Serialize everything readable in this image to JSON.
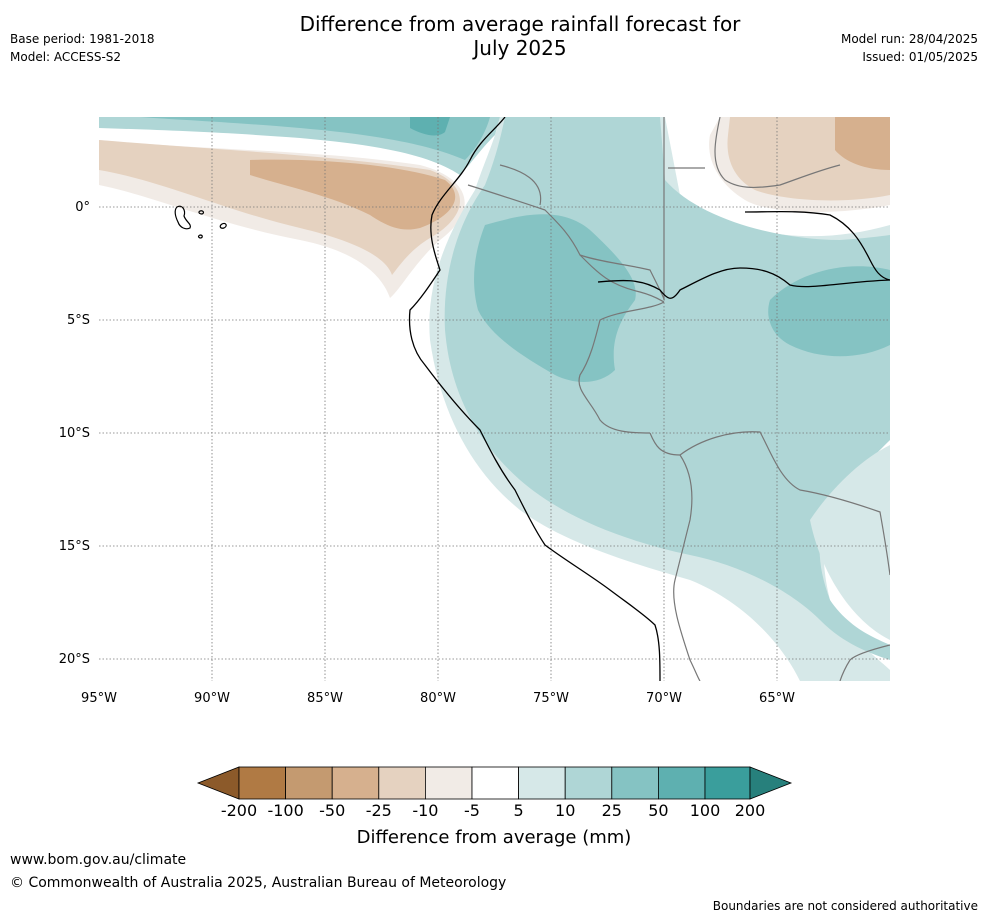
{
  "header": {
    "title_line1": "Difference from average rainfall forecast for",
    "title_line2": "July 2025",
    "base_period": "Base period: 1981-2018",
    "model": "Model: ACCESS-S2",
    "model_run": "Model run: 28/04/2025",
    "issued": "Issued: 01/05/2025"
  },
  "map": {
    "lon_labels": [
      "95°W",
      "90°W",
      "85°W",
      "80°W",
      "75°W",
      "70°W",
      "65°W"
    ],
    "lat_labels": [
      "0°",
      "5°S",
      "10°S",
      "15°S",
      "20°S"
    ],
    "background": "#ffffff",
    "coast_color": "#000000",
    "border_color": "#777777"
  },
  "colorbar": {
    "label": "Difference from average (mm)",
    "ticks": [
      "-200",
      "-100",
      "-50",
      "-25",
      "-10",
      "-5",
      "5",
      "10",
      "25",
      "50",
      "100",
      "200"
    ],
    "colors": [
      "#8c5a2a",
      "#b07a44",
      "#c49a70",
      "#d6b08e",
      "#e5d2c0",
      "#f1ebe6",
      "#ffffff",
      "#d6e8e8",
      "#afd6d6",
      "#85c3c3",
      "#5eb0b0",
      "#3a9e9c",
      "#27807c"
    ]
  },
  "footer": {
    "url": "www.bom.gov.au/climate",
    "copyright": "© Commonwealth of Australia 2025, Australian Bureau of Meteorology",
    "disclaimer": "Boundaries are not considered authoritative"
  }
}
